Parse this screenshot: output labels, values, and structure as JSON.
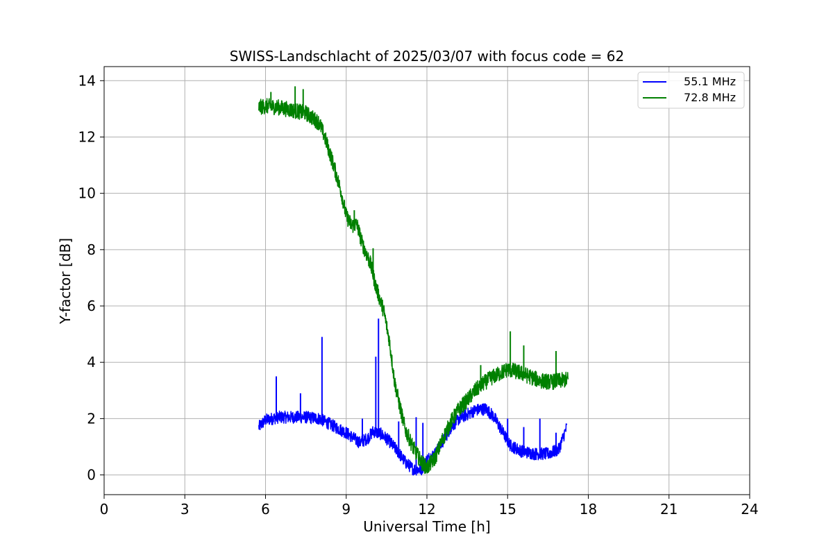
{
  "chart_data": {
    "type": "line",
    "title": "SWISS-Landschlacht of 2025/03/07 with focus code = 62",
    "xlabel": "Universal Time [h]",
    "ylabel": "Y-factor [dB]",
    "xlim": [
      0,
      24
    ],
    "ylim": [
      -0.7,
      14.5
    ],
    "xticks": [
      0,
      3,
      6,
      9,
      12,
      15,
      18,
      21,
      24
    ],
    "yticks": [
      0,
      2,
      4,
      6,
      8,
      10,
      12,
      14
    ],
    "grid": true,
    "legend_position": "top-right",
    "series": [
      {
        "name": "55.1 MHz",
        "color": "#0000ff",
        "noise": 0.22,
        "points": [
          [
            5.75,
            1.7
          ],
          [
            6.0,
            1.95
          ],
          [
            6.5,
            2.05
          ],
          [
            7.0,
            2.05
          ],
          [
            7.5,
            2.05
          ],
          [
            8.0,
            2.0
          ],
          [
            8.5,
            1.75
          ],
          [
            9.0,
            1.5
          ],
          [
            9.5,
            1.15
          ],
          [
            9.8,
            1.3
          ],
          [
            10.0,
            1.55
          ],
          [
            10.3,
            1.45
          ],
          [
            10.6,
            1.2
          ],
          [
            10.9,
            0.85
          ],
          [
            11.2,
            0.45
          ],
          [
            11.5,
            0.2
          ],
          [
            11.8,
            0.2
          ],
          [
            12.0,
            0.55
          ],
          [
            12.3,
            0.75
          ],
          [
            12.6,
            1.2
          ],
          [
            12.9,
            1.7
          ],
          [
            13.2,
            2.0
          ],
          [
            13.5,
            2.15
          ],
          [
            13.8,
            2.3
          ],
          [
            14.2,
            2.35
          ],
          [
            14.5,
            2.05
          ],
          [
            14.8,
            1.55
          ],
          [
            15.1,
            1.05
          ],
          [
            15.5,
            0.85
          ],
          [
            16.0,
            0.75
          ],
          [
            16.5,
            0.75
          ],
          [
            16.9,
            0.9
          ],
          [
            17.2,
            1.7
          ]
        ],
        "spikes": [
          [
            6.4,
            3.5
          ],
          [
            7.3,
            2.9
          ],
          [
            8.1,
            4.9
          ],
          [
            9.6,
            2.0
          ],
          [
            10.1,
            4.2
          ],
          [
            10.2,
            5.55
          ],
          [
            10.95,
            1.9
          ],
          [
            11.6,
            2.05
          ],
          [
            11.85,
            1.85
          ],
          [
            14.0,
            2.5
          ],
          [
            15.0,
            2.0
          ],
          [
            15.6,
            1.7
          ],
          [
            16.2,
            2.0
          ],
          [
            16.8,
            1.5
          ]
        ]
      },
      {
        "name": "72.8 MHz",
        "color": "#008000",
        "noise": 0.28,
        "points": [
          [
            5.75,
            13.05
          ],
          [
            6.0,
            13.1
          ],
          [
            6.5,
            13.05
          ],
          [
            7.0,
            12.95
          ],
          [
            7.5,
            12.85
          ],
          [
            8.0,
            12.5
          ],
          [
            8.2,
            12.0
          ],
          [
            8.5,
            11.1
          ],
          [
            8.8,
            10.1
          ],
          [
            9.0,
            9.2
          ],
          [
            9.2,
            8.85
          ],
          [
            9.4,
            8.9
          ],
          [
            9.6,
            8.2
          ],
          [
            9.9,
            7.5
          ],
          [
            10.1,
            6.7
          ],
          [
            10.4,
            5.8
          ],
          [
            10.6,
            4.8
          ],
          [
            10.8,
            3.3
          ],
          [
            11.0,
            2.4
          ],
          [
            11.2,
            1.6
          ],
          [
            11.5,
            0.95
          ],
          [
            11.8,
            0.45
          ],
          [
            12.0,
            0.25
          ],
          [
            12.3,
            0.6
          ],
          [
            12.6,
            1.3
          ],
          [
            12.9,
            1.9
          ],
          [
            13.2,
            2.35
          ],
          [
            13.5,
            2.65
          ],
          [
            13.8,
            3.0
          ],
          [
            14.1,
            3.25
          ],
          [
            14.4,
            3.45
          ],
          [
            14.7,
            3.6
          ],
          [
            15.0,
            3.75
          ],
          [
            15.4,
            3.65
          ],
          [
            15.8,
            3.5
          ],
          [
            16.2,
            3.35
          ],
          [
            16.6,
            3.3
          ],
          [
            17.0,
            3.35
          ],
          [
            17.25,
            3.4
          ]
        ],
        "spikes": [
          [
            6.2,
            13.6
          ],
          [
            7.1,
            13.8
          ],
          [
            7.4,
            13.7
          ],
          [
            9.3,
            9.4
          ],
          [
            10.0,
            8.05
          ],
          [
            14.0,
            3.9
          ],
          [
            15.1,
            5.1
          ],
          [
            15.6,
            4.6
          ],
          [
            16.8,
            4.4
          ]
        ]
      }
    ]
  }
}
